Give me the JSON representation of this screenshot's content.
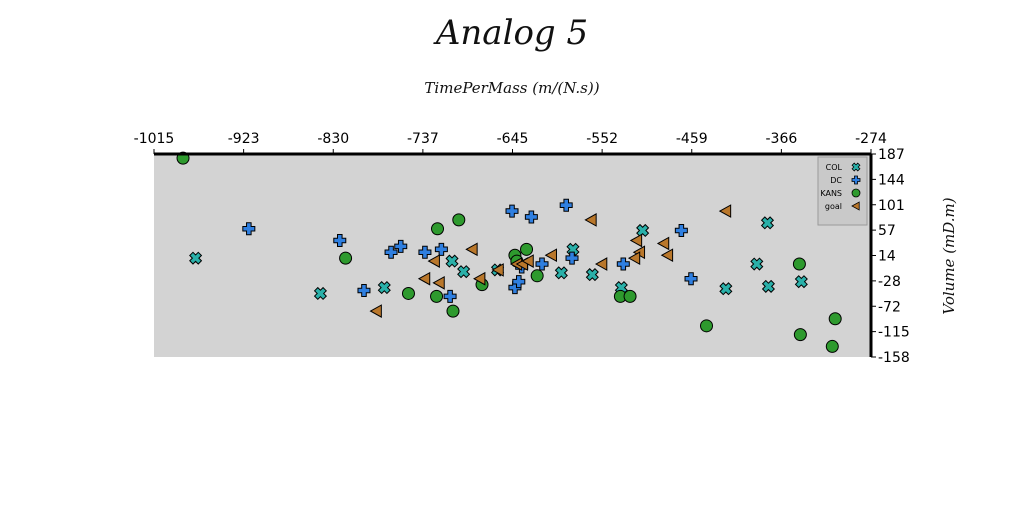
{
  "chart_data": {
    "type": "scatter",
    "title": "Analog 5",
    "xlabel": "TimePerMass (m/(N.s))",
    "ylabel": "Volume (mD.m)",
    "xlim": [
      -1015,
      -274
    ],
    "ylim": [
      -158,
      187
    ],
    "x_ticks": [
      "-1015",
      "-923",
      "-830",
      "-737",
      "-645",
      "-552",
      "-459",
      "-366",
      "-274"
    ],
    "y_ticks": [
      "187",
      "144",
      "101",
      "57",
      "14",
      "-28",
      "-72",
      "-115",
      "-158"
    ],
    "x_axis_position": "top",
    "y_axis_position": "right",
    "legend_position": "top-right",
    "grid": false,
    "colors": {
      "plot_background": "#d3d3d3",
      "COL": "#2ab0a9",
      "DC": "#2f7fe0",
      "KANS": "#2e9a2e",
      "goal": "#b9772b"
    },
    "series": [
      {
        "name": "COL",
        "marker": "x-cross",
        "points": [
          [
            -972,
            10
          ],
          [
            -843,
            -50
          ],
          [
            -777,
            -40
          ],
          [
            -707,
            5
          ],
          [
            -695,
            -13
          ],
          [
            -660,
            -10
          ],
          [
            -582,
            25
          ],
          [
            -562,
            -18
          ],
          [
            -532,
            -40
          ],
          [
            -510,
            57
          ],
          [
            -424,
            -42
          ],
          [
            -392,
            0
          ],
          [
            -381,
            70
          ],
          [
            -380,
            -38
          ],
          [
            -346,
            -30
          ],
          [
            -594,
            -15
          ]
        ]
      },
      {
        "name": "DC",
        "marker": "plus",
        "points": [
          [
            -917,
            60
          ],
          [
            -823,
            40
          ],
          [
            -798,
            -45
          ],
          [
            -770,
            20
          ],
          [
            -760,
            30
          ],
          [
            -735,
            20
          ],
          [
            -718,
            25
          ],
          [
            -709,
            -55
          ],
          [
            -645,
            90
          ],
          [
            -642,
            -40
          ],
          [
            -638,
            -30
          ],
          [
            -635,
            -5
          ],
          [
            -625,
            80
          ],
          [
            -614,
            0
          ],
          [
            -589,
            100
          ],
          [
            -583,
            10
          ],
          [
            -530,
            0
          ],
          [
            -470,
            57
          ],
          [
            -460,
            -25
          ]
        ]
      },
      {
        "name": "KANS",
        "marker": "circle",
        "points": [
          [
            -985,
            180
          ],
          [
            -817,
            10
          ],
          [
            -752,
            -50
          ],
          [
            -723,
            -55
          ],
          [
            -722,
            60
          ],
          [
            -700,
            75
          ],
          [
            -706,
            -80
          ],
          [
            -676,
            -35
          ],
          [
            -642,
            15
          ],
          [
            -630,
            25
          ],
          [
            -619,
            -20
          ],
          [
            -533,
            -55
          ],
          [
            -523,
            -55
          ],
          [
            -444,
            -105
          ],
          [
            -348,
            0
          ],
          [
            -347,
            -120
          ],
          [
            -311,
            -93
          ],
          [
            -314,
            -140
          ],
          [
            -640,
            5
          ]
        ]
      },
      {
        "name": "goal",
        "marker": "triangle-left",
        "points": [
          [
            -785,
            -80
          ],
          [
            -735,
            -25
          ],
          [
            -725,
            5
          ],
          [
            -720,
            -32
          ],
          [
            -686,
            25
          ],
          [
            -678,
            -25
          ],
          [
            -659,
            -10
          ],
          [
            -640,
            0
          ],
          [
            -634,
            0
          ],
          [
            -628,
            5
          ],
          [
            -604,
            15
          ],
          [
            -563,
            75
          ],
          [
            -552,
            0
          ],
          [
            -516,
            40
          ],
          [
            -513,
            20
          ],
          [
            -518,
            10
          ],
          [
            -488,
            35
          ],
          [
            -484,
            15
          ],
          [
            -424,
            90
          ]
        ]
      }
    ],
    "legend": [
      "COL",
      "DC",
      "KANS",
      "goal"
    ]
  }
}
